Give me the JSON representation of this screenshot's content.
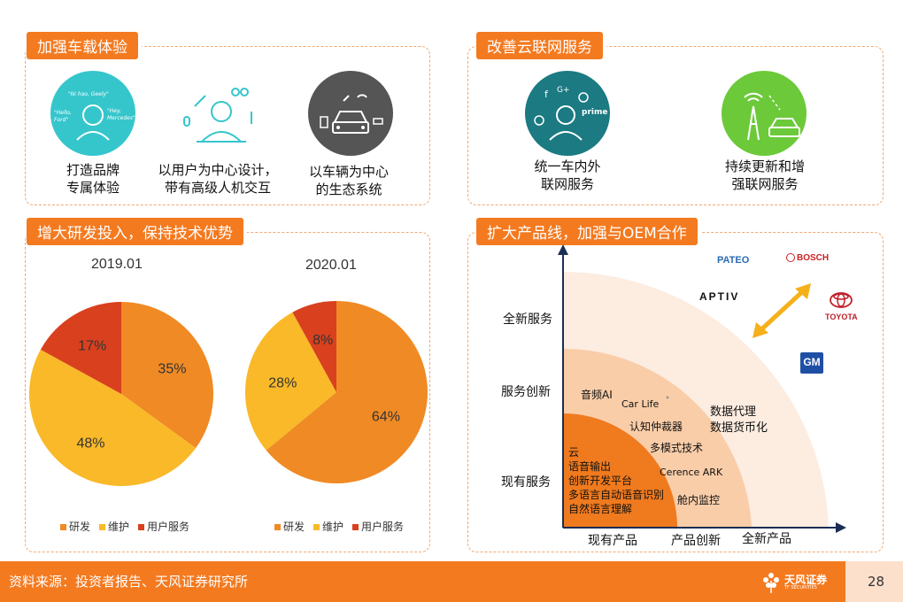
{
  "panels": {
    "experience": {
      "title": "加强车载体验",
      "items": [
        {
          "line1": "打造品牌",
          "line2": "专属体验",
          "bubbles": [
            "\"Ni hao, Geely\"",
            "\"Hello, Ford\"",
            "\"Hey, Mercedes\""
          ]
        },
        {
          "line1": "以用户为中心设计，",
          "line2": "带有高级人机交互"
        },
        {
          "line1": "以车辆为中心",
          "line2": "的生态系统"
        }
      ]
    },
    "cloud": {
      "title": "改善云联网服务",
      "items": [
        {
          "line1": "统一车内外",
          "line2": "联网服务",
          "icon_text": "prime"
        },
        {
          "line1": "持续更新和增",
          "line2": "强联网服务"
        }
      ]
    },
    "rnd": {
      "title": "增大研发投入，保持技术优势"
    },
    "product": {
      "title": "扩大产品线，加强与OEM合作",
      "y_labels": [
        "全新服务",
        "服务创新",
        "现有服务"
      ],
      "x_labels": [
        "现有产品",
        "产品创新",
        "全新产品"
      ],
      "inner_items": [
        "云",
        "语音输出",
        "创新开发平台",
        "多语言自动语音识别",
        "自然语言理解"
      ],
      "mid_items": [
        "音频AI",
        "Car Life",
        "认知仲裁器",
        "多模式技术",
        "Cerence ARK",
        "舱内监控"
      ],
      "outer_items": [
        "数据代理",
        "数据货币化"
      ],
      "brands": [
        "PATEO",
        "BOSCH",
        "APTIV",
        "TOYOTA",
        "GM"
      ]
    }
  },
  "chart_data": [
    {
      "type": "pie",
      "title": "2019.01",
      "categories": [
        "研发",
        "维护",
        "用户服务"
      ],
      "values": [
        35,
        48,
        17
      ],
      "labels": [
        "35%",
        "48%",
        "17%"
      ],
      "colors": [
        "#f08a24",
        "#f9b928",
        "#d9401e"
      ],
      "legend": "bottom"
    },
    {
      "type": "pie",
      "title": "2020.01",
      "categories": [
        "研发",
        "维护",
        "用户服务"
      ],
      "values": [
        64,
        28,
        8
      ],
      "labels": [
        "64%",
        "28%",
        "8%"
      ],
      "colors": [
        "#f08a24",
        "#f9b928",
        "#d9401e"
      ],
      "legend": "bottom"
    }
  ],
  "footer": {
    "source": "资料来源：投资者报告、天风证券研究所",
    "logo_name": "天风证券",
    "logo_sub": "TF SECURITIES",
    "page": "28"
  },
  "colors": {
    "accent": "#f47a20",
    "teal": "#35c6cc",
    "green": "#6cc93a",
    "dark_teal": "#1b7a82",
    "gray": "#555555"
  }
}
